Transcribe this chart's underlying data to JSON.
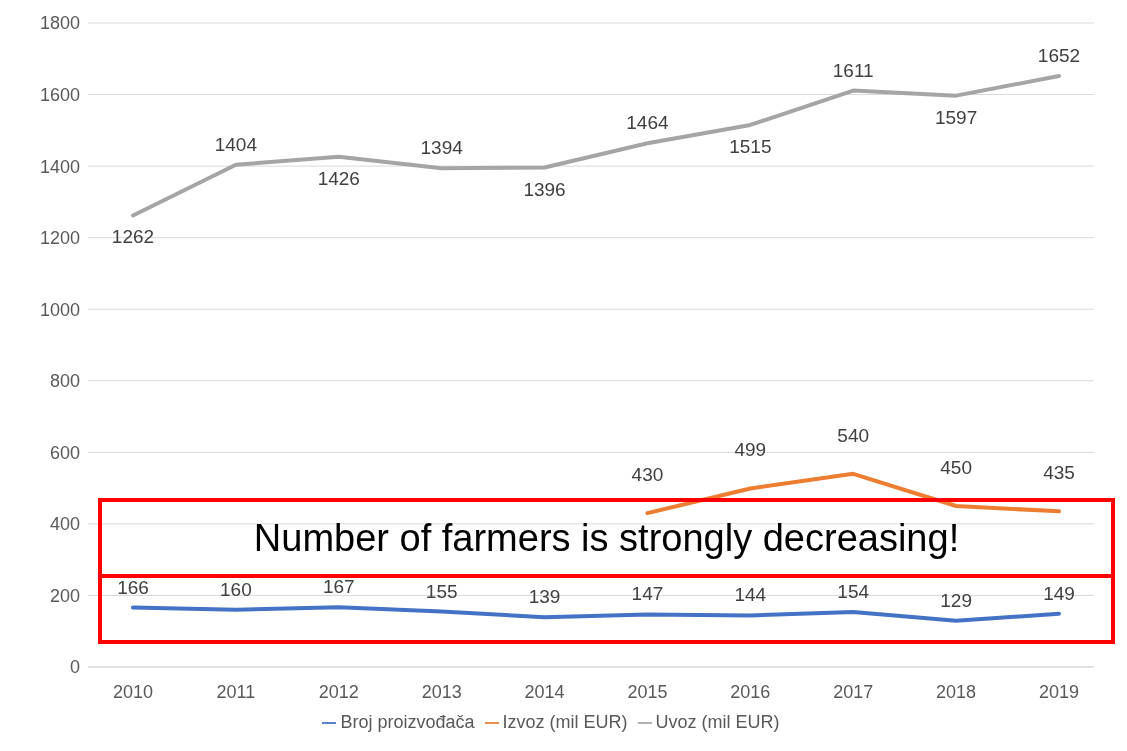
{
  "chart_data": {
    "type": "line",
    "categories": [
      "2010",
      "2011",
      "2012",
      "2013",
      "2014",
      "2015",
      "2016",
      "2017",
      "2018",
      "2019"
    ],
    "series": [
      {
        "name": "Broj proizvođača",
        "color": "#4472c4",
        "values": [
          166,
          160,
          167,
          155,
          139,
          147,
          144,
          154,
          129,
          149
        ]
      },
      {
        "name": "Izvoz (mil EUR)",
        "color": "#ed7d31",
        "values": [
          null,
          null,
          null,
          null,
          null,
          430,
          499,
          540,
          450,
          435
        ]
      },
      {
        "name": "Uvoz (mil EUR)",
        "color": "#a5a5a5",
        "values": [
          1262,
          1404,
          1426,
          1394,
          1396,
          1464,
          1515,
          1611,
          1597,
          1652
        ]
      }
    ],
    "ylim": [
      0,
      1800
    ],
    "yticks": [
      0,
      200,
      400,
      600,
      800,
      1000,
      1200,
      1400,
      1600,
      1800
    ],
    "grid": "y",
    "legend": "bottom",
    "marker": "none",
    "line_style": "solid",
    "data_labels": true,
    "annotations": [
      "Number of farmers is strongly decreasing!"
    ]
  }
}
